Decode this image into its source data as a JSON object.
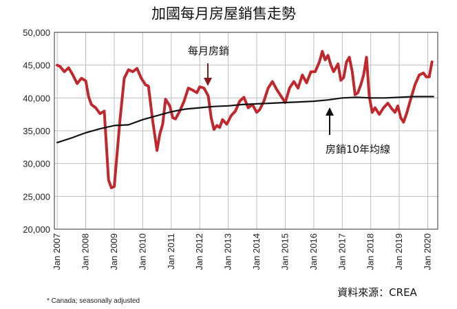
{
  "chart_data": {
    "type": "line",
    "title": "加國每月房屋銷售走勢",
    "ylim": [
      20000,
      50000
    ],
    "y_ticks": [
      "20,000",
      "25,000",
      "30,000",
      "35,000",
      "40,000",
      "45,000",
      "50,000"
    ],
    "x_ticks": [
      "Jan 2007",
      "Jan 2008",
      "Jan 2009",
      "Jan 2010",
      "Jan 2011",
      "Jan 2012",
      "Jan 2013",
      "Jan 2014",
      "Jan 2015",
      "Jan 2016",
      "Jan 2017",
      "Jan 2018",
      "Jan 2019",
      "Jan 2020"
    ],
    "grid": true,
    "series": [
      {
        "name": "每月房銷",
        "color": "#c0282d",
        "x": [
          2007.0,
          2007.1,
          2007.25,
          2007.4,
          2007.55,
          2007.7,
          2007.85,
          2008.0,
          2008.1,
          2008.2,
          2008.35,
          2008.5,
          2008.65,
          2008.8,
          2008.9,
          2009.0,
          2009.1,
          2009.2,
          2009.35,
          2009.5,
          2009.65,
          2009.8,
          2009.95,
          2010.1,
          2010.2,
          2010.35,
          2010.5,
          2010.6,
          2010.7,
          2010.8,
          2010.95,
          2011.05,
          2011.15,
          2011.3,
          2011.45,
          2011.6,
          2011.75,
          2011.9,
          2012.0,
          2012.15,
          2012.3,
          2012.4,
          2012.5,
          2012.6,
          2012.7,
          2012.8,
          2012.95,
          2013.1,
          2013.25,
          2013.4,
          2013.55,
          2013.7,
          2013.85,
          2014.0,
          2014.1,
          2014.25,
          2014.4,
          2014.55,
          2014.7,
          2014.85,
          2015.0,
          2015.15,
          2015.3,
          2015.45,
          2015.6,
          2015.75,
          2015.9,
          2016.05,
          2016.2,
          2016.3,
          2016.4,
          2016.5,
          2016.6,
          2016.7,
          2016.85,
          2016.95,
          2017.05,
          2017.15,
          2017.25,
          2017.35,
          2017.45,
          2017.55,
          2017.65,
          2017.75,
          2017.85,
          2017.95,
          2018.05,
          2018.15,
          2018.3,
          2018.45,
          2018.6,
          2018.75,
          2018.85,
          2018.95,
          2019.05,
          2019.15,
          2019.25,
          2019.4,
          2019.55,
          2019.7,
          2019.85,
          2019.95,
          2020.05,
          2020.15
        ],
        "values": [
          45000,
          44800,
          44000,
          44600,
          43500,
          42200,
          43000,
          42600,
          40200,
          39000,
          38500,
          37600,
          38000,
          27500,
          26300,
          26500,
          31500,
          36500,
          43000,
          44300,
          44000,
          44500,
          43000,
          42000,
          41800,
          36500,
          32000,
          34500,
          36000,
          39800,
          38800,
          37000,
          36800,
          38000,
          39500,
          41500,
          41200,
          40800,
          41700,
          41500,
          40300,
          37000,
          35200,
          35800,
          35500,
          36700,
          36000,
          37300,
          38000,
          39500,
          40100,
          38500,
          39000,
          37800,
          38200,
          39500,
          41500,
          42500,
          41300,
          40300,
          39300,
          41500,
          42500,
          41500,
          43500,
          42300,
          44000,
          44000,
          45500,
          47100,
          45800,
          46500,
          45000,
          44000,
          45200,
          42700,
          43100,
          45500,
          46200,
          44000,
          40500,
          40800,
          42000,
          43500,
          46200,
          40200,
          37800,
          38500,
          37500,
          38500,
          39200,
          38300,
          37800,
          38800,
          37000,
          36300,
          37500,
          39800,
          42000,
          43500,
          43800,
          43200,
          43200,
          45500
        ],
        "stroke_width_hint": "thick"
      },
      {
        "name": "房銷10年均線",
        "color": "#111111",
        "x": [
          2007.0,
          2007.5,
          2008.0,
          2008.5,
          2009.0,
          2009.5,
          2010.0,
          2010.5,
          2011.0,
          2011.5,
          2012.0,
          2012.5,
          2013.0,
          2013.5,
          2014.0,
          2014.5,
          2015.0,
          2015.5,
          2016.0,
          2016.5,
          2017.0,
          2017.5,
          2018.0,
          2018.5,
          2019.0,
          2019.5,
          2020.0,
          2020.2
        ],
        "values": [
          33200,
          33900,
          34700,
          35300,
          35800,
          35900,
          36700,
          37300,
          37900,
          38300,
          38500,
          38700,
          38800,
          39000,
          39100,
          39200,
          39300,
          39400,
          39500,
          39700,
          40000,
          40100,
          40000,
          40000,
          40100,
          40200,
          40200,
          40200
        ]
      }
    ],
    "annotations": {
      "monthly_label": "每月房銷",
      "avg_label": "房銷10年均線"
    },
    "footnote": "* Canada; seasonally adjusted",
    "source": "資料來源：CREA"
  }
}
